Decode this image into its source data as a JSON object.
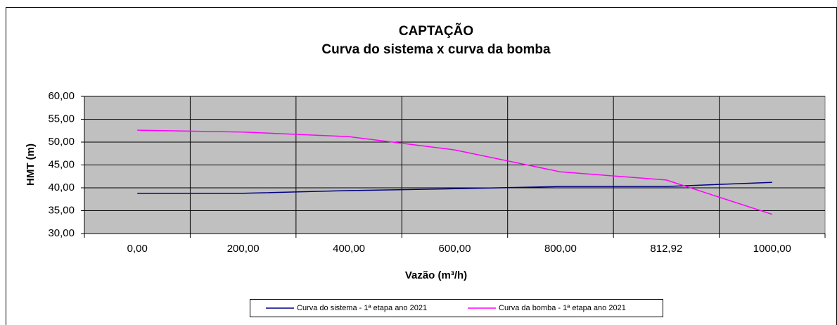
{
  "chart_data": {
    "type": "line",
    "title": "CAPTAÇÃO",
    "subtitle": "Curva do sistema x curva da bomba",
    "x_label": "Vazão (m³/h)",
    "y_label": "HMT (m)",
    "categories": [
      "0,00",
      "200,00",
      "400,00",
      "600,00",
      "800,00",
      "812,92",
      "1000,00"
    ],
    "series": [
      {
        "name": "Curva do sistema - 1ª etapa ano 2021",
        "color": "#000080",
        "values": [
          38.8,
          38.8,
          39.4,
          39.8,
          40.3,
          40.3,
          41.2
        ]
      },
      {
        "name": "Curva da bomba - 1ª etapa ano 2021",
        "color": "#ff00ff",
        "values": [
          52.6,
          52.2,
          51.2,
          48.3,
          43.5,
          41.7,
          34.2
        ]
      }
    ],
    "ylim": [
      30,
      60
    ],
    "yticks": [
      {
        "value": 30,
        "label": "30,00"
      },
      {
        "value": 35,
        "label": "35,00"
      },
      {
        "value": 40,
        "label": "40,00"
      },
      {
        "value": 45,
        "label": "45,00"
      },
      {
        "value": 50,
        "label": "50,00"
      },
      {
        "value": 55,
        "label": "55,00"
      },
      {
        "value": 60,
        "label": "60,00"
      }
    ],
    "grid": true,
    "legend": "bottom"
  }
}
